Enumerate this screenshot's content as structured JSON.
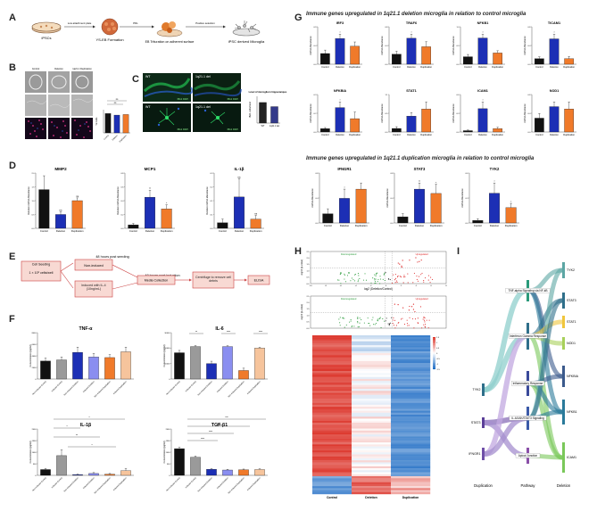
{
  "figure": {
    "panels": [
      "A",
      "B",
      "C",
      "D",
      "E",
      "F",
      "G",
      "H",
      "I"
    ]
  },
  "panel_a": {
    "steps": [
      "iPSCs",
      "YS-EB Formation",
      "EB Trituration on adherent surface",
      "iPSC derived Microglia"
    ],
    "arrows": [
      "Low attachment plate",
      "PDL",
      "Positive selection"
    ]
  },
  "panel_b": {
    "col_labels": [
      "Control",
      "Deletion",
      "1q21.1 Duplication"
    ],
    "chart": {
      "type": "bar",
      "categories": [
        "Control",
        "Deletion",
        "Duplication"
      ],
      "values": [
        100,
        92,
        95
      ],
      "ylabel": "% Cells",
      "sig": [
        "ns",
        "ns"
      ]
    }
  },
  "panel_c": {
    "labels": [
      "WT",
      "1q21.1 del",
      "WT",
      "1q21.1 del"
    ],
    "stain": "IBA1 DAPI",
    "chart": {
      "type": "bar",
      "title": "Level of microglia in hippocampus",
      "categories": [
        "WT",
        "1q21.1 del"
      ],
      "values": [
        1.0,
        0.8
      ],
      "ylabel": "IBA1 cells/mm2"
    }
  },
  "panel_d": {
    "charts": [
      {
        "type": "bar",
        "title": "MMP2",
        "categories": [
          "Control",
          "Deletion",
          "Duplication"
        ],
        "values": [
          1.4,
          0.5,
          1.0
        ],
        "errors": [
          0.5,
          0.1,
          0.1
        ],
        "ylabel": "Relative mRNA Abundance",
        "ylim": [
          0,
          2.0
        ],
        "sig": [
          "",
          "ns",
          "ns"
        ],
        "colors": [
          "#111111",
          "#1c2fb5",
          "#f07a2a"
        ]
      },
      {
        "type": "bar",
        "title": "MCP1",
        "categories": [
          "Control",
          "Deletion",
          "Duplication"
        ],
        "values": [
          0.05,
          0.45,
          0.28
        ],
        "errors": [
          0.02,
          0.1,
          0.06
        ],
        "ylabel": "Relative mRNA Abundance",
        "ylim": [
          0,
          0.8
        ],
        "sig": [
          "",
          "**",
          "*"
        ],
        "colors": [
          "#111111",
          "#1c2fb5",
          "#f07a2a"
        ]
      },
      {
        "type": "bar",
        "title": "IL-1β",
        "categories": [
          "Control",
          "Deletion",
          "Duplication"
        ],
        "values": [
          0.03,
          0.17,
          0.05
        ],
        "errors": [
          0.02,
          0.1,
          0.02
        ],
        "ylabel": "Relative mRNA abundance",
        "ylim": [
          0,
          0.3
        ],
        "sig": [
          "",
          "ns",
          "ns"
        ],
        "colors": [
          "#111111",
          "#1c2fb5",
          "#f07a2a"
        ]
      }
    ]
  },
  "panel_e": {
    "label_top": "48 hours post seeding",
    "label_mid": "48 hours post induction",
    "boxes": [
      "Cell Seeding",
      "1 × 10⁶ cells/well",
      "Non-induced",
      "Induced with IL-4 (10ng/mL)",
      "Media Collection",
      "Centrifuge to remove cell debris",
      "ELISA"
    ]
  },
  "panel_f": {
    "categories": [
      "Non-Induced Control",
      "Induced Control",
      "Non-Induced Deletion",
      "Induced Deletion",
      "Non-Induced Duplication",
      "Induced Duplication"
    ],
    "colors": [
      "#111111",
      "#9a9a9a",
      "#1c2fb5",
      "#8a8ef0",
      "#f07a2a",
      "#f6c49c"
    ],
    "charts": [
      {
        "type": "bar",
        "title": "TNF-α",
        "values": [
          3100,
          3300,
          4600,
          3800,
          3700,
          4700
        ],
        "errors": [
          500,
          500,
          900,
          600,
          500,
          800
        ],
        "ylabel": "Concentration (pg/ml)",
        "ylim": [
          0,
          8000
        ],
        "ticks": [
          "0",
          "2000",
          "4000",
          "6000",
          "8000"
        ],
        "sig": []
      },
      {
        "type": "bar",
        "title": "IL-6",
        "values": [
          17000,
          21000,
          10000,
          21000,
          5500,
          20000
        ],
        "errors": [
          1500,
          600,
          1500,
          500,
          1500,
          500
        ],
        "ylabel": "Concentration (pg/ml)",
        "ylim": [
          0,
          30000
        ],
        "ticks": [
          "0",
          "10000",
          "20000",
          "30000"
        ],
        "sig": [
          "**",
          "****",
          "****"
        ]
      },
      {
        "type": "bar",
        "title": "IL-1β",
        "values": [
          250,
          850,
          30,
          80,
          50,
          200
        ],
        "errors": [
          50,
          250,
          20,
          40,
          30,
          100
        ],
        "ylabel": "Concentration (pg/ml)",
        "ylim": [
          0,
          2000
        ],
        "ticks": [
          "0",
          "500",
          "1000",
          "1500",
          "2000"
        ],
        "sig": [
          "*",
          "*",
          "**",
          "*"
        ]
      },
      {
        "type": "bar",
        "title": "TGF-β1",
        "values": [
          1150,
          780,
          260,
          230,
          240,
          250
        ],
        "errors": [
          60,
          50,
          30,
          30,
          30,
          30
        ],
        "ylabel": "Concentration (pg/ml)",
        "ylim": [
          0,
          2000
        ],
        "ticks": [
          "0",
          "500",
          "1000",
          "1500",
          "2000"
        ],
        "sig": [
          "****",
          "****",
          "****",
          "***"
        ]
      }
    ]
  },
  "panel_g": {
    "subtitle_1": "Immune genes upregulated in 1q21.1 deletion microglia in relation to control microglia",
    "subtitle_2": "Immune genes upregulated in 1q21.1 duplication microglia in relation to control microglia",
    "categories": [
      "Control",
      "Deletion",
      "Duplication"
    ],
    "colors": [
      "#111111",
      "#1c2fb5",
      "#f07a2a"
    ],
    "ylabel": "mRNA Abundance",
    "charts_row1": [
      {
        "type": "bar",
        "title": "IRF3",
        "values": [
          0.25,
          0.6,
          0.42
        ],
        "errors": [
          0.08,
          0.1,
          0.1
        ],
        "sig": "*"
      },
      {
        "type": "bar",
        "title": "TRAF6",
        "values": [
          0.2,
          0.52,
          0.35
        ],
        "errors": [
          0.06,
          0.08,
          0.1
        ],
        "sig": "*"
      },
      {
        "type": "bar",
        "title": "NFKB1",
        "values": [
          0.2,
          0.7,
          0.3
        ],
        "errors": [
          0.06,
          0.1,
          0.06
        ],
        "sig": "*"
      },
      {
        "type": "bar",
        "title": "TICAM1",
        "values": [
          0.12,
          0.55,
          0.12
        ],
        "errors": [
          0.04,
          0.1,
          0.05
        ],
        "sig": "*"
      }
    ],
    "charts_row2": [
      {
        "type": "bar",
        "title": "NFKBIA",
        "values": [
          0.03,
          0.22,
          0.12
        ],
        "errors": [
          0.01,
          0.05,
          0.06
        ],
        "sig": "*"
      },
      {
        "type": "bar",
        "title": "STAT1",
        "values": [
          0.1,
          0.45,
          0.65
        ],
        "errors": [
          0.05,
          0.1,
          0.2
        ],
        "sig": ""
      },
      {
        "type": "bar",
        "title": "ICAM1",
        "values": [
          0.02,
          0.35,
          0.05
        ],
        "errors": [
          0.01,
          0.1,
          0.02
        ],
        "sig": "*"
      },
      {
        "type": "bar",
        "title": "NOD1",
        "values": [
          0.3,
          0.55,
          0.5
        ],
        "errors": [
          0.1,
          0.1,
          0.15
        ],
        "sig": ""
      }
    ],
    "charts_row3": [
      {
        "type": "bar",
        "title": "IFNGR1",
        "values": [
          0.15,
          0.4,
          0.55
        ],
        "errors": [
          0.08,
          0.15,
          0.1
        ],
        "sig": "*"
      },
      {
        "type": "bar",
        "title": "STAT3",
        "values": [
          0.1,
          0.55,
          0.48
        ],
        "errors": [
          0.05,
          0.1,
          0.15
        ],
        "sig": "**"
      },
      {
        "type": "bar",
        "title": "TYK2",
        "values": [
          0.03,
          0.35,
          0.18
        ],
        "errors": [
          0.02,
          0.12,
          0.05
        ],
        "sig": "*"
      }
    ]
  },
  "panel_h": {
    "volcano_1": {
      "xlabel": "log2 (Deletion/Control)",
      "ylabel": "-log10 (p-value)",
      "left_label": "Downregulated",
      "right_label": "Upregulated",
      "yticks": [
        "0.0",
        "0.5",
        "1.0",
        "1.5",
        "2.0",
        "2.5"
      ],
      "xticks": [
        "-10",
        "-8",
        "-6",
        "-4",
        "-2",
        "0",
        "2",
        "4",
        "6",
        "8"
      ]
    },
    "volcano_2": {
      "ylabel": "-log10 (p-value)",
      "left_label": "Downregulated",
      "right_label": "Upregulated",
      "yticks": [
        "0.0",
        "0.5",
        "1.0",
        "1.5",
        "2.0",
        "2.5"
      ]
    },
    "heatmap": {
      "type": "heatmap",
      "columns": [
        "Control",
        "Deletion",
        "Duplication"
      ],
      "legend_ticks": [
        "1.5",
        "1",
        "0.5",
        "0",
        "-0.5",
        "-1",
        "-1.5"
      ]
    }
  },
  "panel_i": {
    "left_genes": [
      "TYK2",
      "STAT3",
      "IFNGR1"
    ],
    "pathways": [
      "TNF-alpha Signaling via NF-kB",
      "Interferon Gamma Response",
      "Inflammatory Response",
      "IL-6/JAK/STAT3 Signaling",
      "Apical Junction"
    ],
    "right_genes": [
      "TYK2",
      "STAT3",
      "STAT1",
      "NOD1",
      "NFKBIA",
      "NFKB1",
      "ICAM1"
    ],
    "axis_labels": [
      "Duplication",
      "Pathway",
      "Deletion"
    ]
  }
}
